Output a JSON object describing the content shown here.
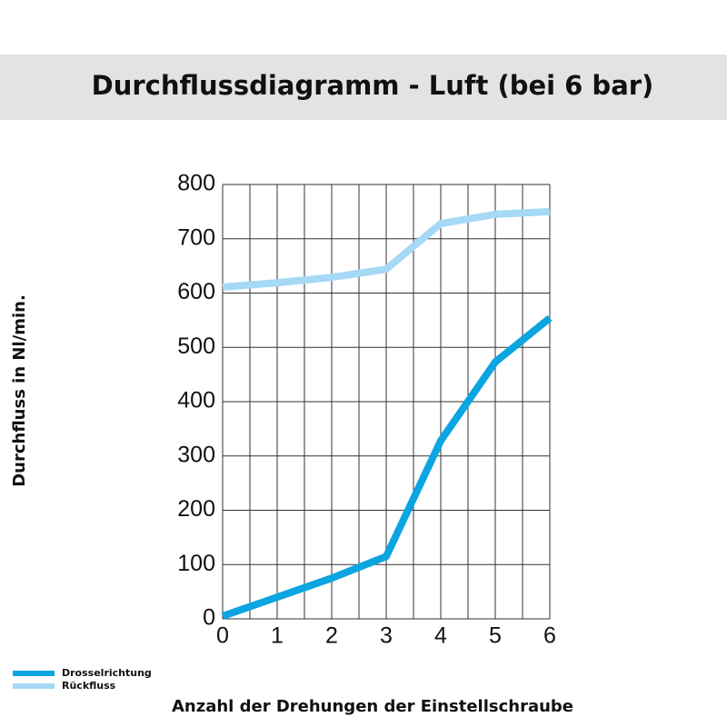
{
  "chart_data": {
    "type": "line",
    "title": "Durchflussdiagramm - Luft (bei 6 bar)",
    "x_label": "Anzahl der Drehungen der Einstellschraube",
    "y_label": "Durchfluss in Nl/min.",
    "x": [
      0,
      1,
      2,
      3,
      4,
      5,
      6
    ],
    "series": [
      {
        "name": "Drosselrichtung",
        "color": "#0ba5e1",
        "values": [
          5,
          40,
          75,
          115,
          328,
          473,
          554
        ]
      },
      {
        "name": "Rückfluss",
        "color": "#a5d9f6",
        "values": [
          611,
          619,
          629,
          644,
          728,
          745,
          750
        ]
      }
    ],
    "xlim": [
      0,
      6
    ],
    "xticks": [
      0,
      1,
      2,
      3,
      4,
      5,
      6
    ],
    "ylim": [
      0,
      800
    ],
    "yticks": [
      0,
      100,
      200,
      300,
      400,
      500,
      600,
      700,
      800
    ],
    "grid": true,
    "legend": "bottom-left"
  }
}
